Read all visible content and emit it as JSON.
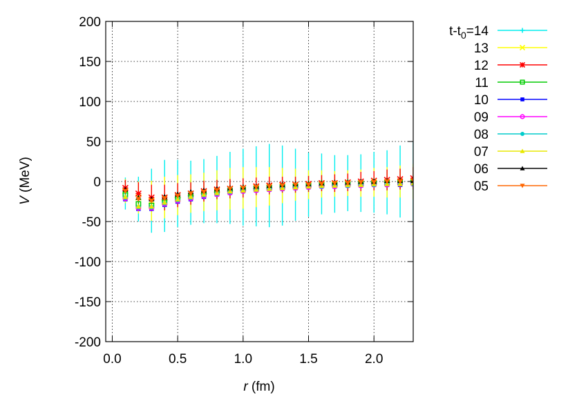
{
  "chart_data": {
    "type": "scatter",
    "title": "",
    "xlabel": {
      "symbol": "r",
      "unit": "(fm)"
    },
    "ylabel": {
      "symbol": "V",
      "unit": "(MeV)"
    },
    "xlim": [
      -0.05,
      2.3
    ],
    "ylim": [
      -200,
      200
    ],
    "x_ticks": [
      {
        "value": 0.0,
        "label": "0.0"
      },
      {
        "value": 0.5,
        "label": "0.5"
      },
      {
        "value": 1.0,
        "label": "1.0"
      },
      {
        "value": 1.5,
        "label": "1.5"
      },
      {
        "value": 2.0,
        "label": "2.0"
      }
    ],
    "y_ticks": [
      {
        "value": 200,
        "label": "200"
      },
      {
        "value": 150,
        "label": "150"
      },
      {
        "value": 100,
        "label": "100"
      },
      {
        "value": 50,
        "label": "50"
      },
      {
        "value": 0,
        "label": "0"
      },
      {
        "value": -50,
        "label": "-50"
      },
      {
        "value": -100,
        "label": "-100"
      },
      {
        "value": -150,
        "label": "-150"
      },
      {
        "value": -200,
        "label": "-200"
      }
    ],
    "grid": true,
    "legend_placement": "right, outside plot",
    "legend_title_main": "t-t",
    "legend_title_sub": "0",
    "series": [
      {
        "name": "14",
        "label": "=14",
        "color": "#00eeee",
        "marker": "plus",
        "x": [
          0.1,
          0.2,
          0.3,
          0.4,
          0.5,
          0.6,
          0.7,
          0.8,
          0.9,
          1.0,
          1.1,
          1.2,
          1.3,
          1.4,
          1.5,
          1.6,
          1.7,
          1.8,
          1.9,
          2.0,
          2.1,
          2.2,
          2.3
        ],
        "y": [
          -15,
          -22,
          -24,
          -18,
          -15,
          -14,
          -12,
          -10,
          -8,
          -7,
          -6,
          -5,
          -5,
          -4,
          -4,
          -3,
          -3,
          -2,
          -2,
          -1,
          -1,
          0,
          0
        ],
        "error": [
          20,
          28,
          40,
          45,
          42,
          40,
          40,
          42,
          45,
          48,
          50,
          52,
          50,
          45,
          40,
          38,
          36,
          35,
          36,
          38,
          40,
          45,
          50
        ]
      },
      {
        "name": "13",
        "label": "13",
        "color": "#ffff00",
        "marker": "cross",
        "x": [
          0.1,
          0.2,
          0.3,
          0.4,
          0.5,
          0.6,
          0.7,
          0.8,
          0.9,
          1.0,
          1.1,
          1.2,
          1.3,
          1.4,
          1.5,
          1.6,
          1.7,
          1.8,
          1.9,
          2.0,
          2.1,
          2.2,
          2.3
        ],
        "y": [
          -12,
          -20,
          -24,
          -20,
          -17,
          -15,
          -13,
          -11,
          -9,
          -8,
          -7,
          -6,
          -5,
          -4,
          -4,
          -3,
          -3,
          -2,
          -2,
          -1,
          -1,
          0,
          0
        ],
        "error": [
          15,
          20,
          25,
          26,
          25,
          24,
          24,
          25,
          26,
          26,
          25,
          24,
          22,
          20,
          18,
          17,
          16,
          16,
          17,
          18,
          19,
          20,
          22
        ]
      },
      {
        "name": "12",
        "label": "12",
        "color": "#ff0000",
        "marker": "star",
        "x": [
          0.1,
          0.2,
          0.3,
          0.4,
          0.5,
          0.6,
          0.7,
          0.8,
          0.9,
          1.0,
          1.1,
          1.2,
          1.3,
          1.4,
          1.5,
          1.6,
          1.7,
          1.8,
          1.9,
          2.0,
          2.1,
          2.2,
          2.3
        ],
        "y": [
          -8,
          -15,
          -20,
          -20,
          -17,
          -15,
          -12,
          -10,
          -9,
          -8,
          -6,
          -5,
          -4,
          -4,
          -3,
          -2,
          -2,
          -1,
          0,
          1,
          2,
          3,
          4
        ],
        "error": [
          10,
          14,
          16,
          16,
          15,
          14,
          13,
          12,
          12,
          12,
          11,
          11,
          10,
          10,
          10,
          10,
          11,
          11,
          12,
          12,
          13,
          13,
          14
        ]
      },
      {
        "name": "11",
        "label": "11",
        "color": "#00cc00",
        "marker": "square-open",
        "x": [
          0.1,
          0.2,
          0.3,
          0.4,
          0.5,
          0.6,
          0.7,
          0.8,
          0.9,
          1.0,
          1.1,
          1.2,
          1.3,
          1.4,
          1.5,
          1.6,
          1.7,
          1.8,
          1.9,
          2.0,
          2.1,
          2.2,
          2.3
        ],
        "y": [
          -16,
          -28,
          -30,
          -26,
          -22,
          -19,
          -16,
          -14,
          -12,
          -10,
          -9,
          -8,
          -7,
          -6,
          -5,
          -4,
          -4,
          -3,
          -3,
          -2,
          -2,
          -1,
          -1
        ],
        "error": [
          5,
          6,
          7,
          7,
          6,
          6,
          6,
          6,
          6,
          6,
          6,
          6,
          6,
          6,
          6,
          6,
          6,
          6,
          6,
          6,
          6,
          6,
          6
        ]
      },
      {
        "name": "10",
        "label": "10",
        "color": "#0000ff",
        "marker": "square-filled",
        "x": [
          0.1,
          0.2,
          0.3,
          0.4,
          0.5,
          0.6,
          0.7,
          0.8,
          0.9,
          1.0,
          1.1,
          1.2,
          1.3,
          1.4,
          1.5,
          1.6,
          1.7,
          1.8,
          1.9,
          2.0,
          2.1,
          2.2,
          2.3
        ],
        "y": [
          -22,
          -34,
          -34,
          -29,
          -25,
          -22,
          -19,
          -16,
          -14,
          -12,
          -11,
          -10,
          -9,
          -8,
          -7,
          -6,
          -6,
          -5,
          -5,
          -4,
          -4,
          -4,
          -3
        ],
        "error": [
          2,
          2,
          3,
          3,
          3,
          3,
          3,
          3,
          3,
          3,
          3,
          3,
          3,
          3,
          3,
          3,
          3,
          3,
          3,
          3,
          3,
          3,
          3
        ]
      },
      {
        "name": "09",
        "label": "09",
        "color": "#ff00ff",
        "marker": "circle-open",
        "x": [
          0.1,
          0.2,
          0.3,
          0.4,
          0.5,
          0.6,
          0.7,
          0.8,
          0.9,
          1.0,
          1.1,
          1.2,
          1.3,
          1.4,
          1.5,
          1.6,
          1.7,
          1.8,
          1.9,
          2.0,
          2.1,
          2.2,
          2.3
        ],
        "y": [
          -21,
          -33,
          -33,
          -28,
          -24,
          -21,
          -18,
          -16,
          -14,
          -12,
          -11,
          -10,
          -9,
          -8,
          -7,
          -6,
          -6,
          -5,
          -5,
          -4,
          -4,
          -3,
          -3
        ],
        "error": [
          2,
          2,
          2,
          2,
          2,
          2,
          2,
          2,
          2,
          2,
          2,
          2,
          2,
          2,
          2,
          2,
          2,
          2,
          2,
          2,
          2,
          2,
          2
        ]
      },
      {
        "name": "08",
        "label": "08",
        "color": "#00cccc",
        "marker": "circle-filled",
        "x": [
          0.1,
          0.2,
          0.3,
          0.4,
          0.5,
          0.6,
          0.7,
          0.8,
          0.9,
          1.0,
          1.1,
          1.2,
          1.3,
          1.4,
          1.5,
          1.6,
          1.7,
          1.8,
          1.9,
          2.0,
          2.1,
          2.2,
          2.3
        ],
        "y": [
          -20,
          -32,
          -32,
          -27,
          -23,
          -20,
          -17,
          -15,
          -13,
          -11,
          -10,
          -9,
          -8,
          -7,
          -6,
          -6,
          -5,
          -5,
          -4,
          -4,
          -3,
          -3,
          -3
        ],
        "error": [
          1,
          1,
          1,
          1,
          1,
          1,
          1,
          1,
          1,
          1,
          1,
          1,
          1,
          1,
          1,
          1,
          1,
          1,
          1,
          1,
          1,
          1,
          1
        ]
      },
      {
        "name": "07",
        "label": "07",
        "color": "#e8e800",
        "marker": "triangle-up",
        "x": [
          0.1,
          0.2,
          0.3,
          0.4,
          0.5,
          0.6,
          0.7,
          0.8,
          0.9,
          1.0,
          1.1,
          1.2,
          1.3,
          1.4,
          1.5,
          1.6,
          1.7,
          1.8,
          1.9,
          2.0,
          2.1,
          2.2,
          2.3
        ],
        "y": [
          -19,
          -31,
          -31,
          -26,
          -22,
          -19,
          -16,
          -14,
          -12,
          -11,
          -10,
          -9,
          -8,
          -7,
          -6,
          -5,
          -5,
          -4,
          -4,
          -3,
          -3,
          -3,
          -2
        ],
        "error": [
          1,
          1,
          1,
          1,
          1,
          1,
          1,
          1,
          1,
          1,
          1,
          1,
          1,
          1,
          1,
          1,
          1,
          1,
          1,
          1,
          1,
          1,
          1
        ]
      },
      {
        "name": "06",
        "label": "06",
        "color": "#000000",
        "marker": "triangle-up",
        "x": [
          0.1,
          0.2,
          0.3,
          0.4,
          0.5,
          0.6,
          0.7,
          0.8,
          0.9,
          1.0,
          1.1,
          1.2,
          1.3,
          1.4,
          1.5,
          1.6,
          1.7,
          1.8,
          1.9,
          2.0,
          2.1,
          2.2,
          2.3
        ],
        "y": [
          -10,
          -20,
          -22,
          -19,
          -16,
          -13,
          -11,
          -9,
          -8,
          -7,
          -6,
          -5,
          -4,
          -3,
          -3,
          -2,
          -1,
          -1,
          0,
          0,
          1,
          1,
          1
        ],
        "error": [
          1,
          1,
          1,
          1,
          1,
          1,
          1,
          1,
          1,
          1,
          1,
          1,
          1,
          1,
          1,
          1,
          1,
          1,
          1,
          1,
          1,
          1,
          1
        ]
      },
      {
        "name": "05",
        "label": "05",
        "color": "#ff6600",
        "marker": "triangle-down",
        "x": [
          0.1,
          0.2,
          0.3,
          0.4,
          0.5,
          0.6,
          0.7,
          0.8,
          0.9,
          1.0,
          1.1,
          1.2,
          1.3,
          1.4,
          1.5,
          1.6,
          1.7,
          1.8,
          1.9,
          2.0,
          2.1,
          2.2,
          2.3
        ],
        "y": [
          -12,
          -22,
          -24,
          -21,
          -18,
          -15,
          -13,
          -11,
          -9,
          -8,
          -7,
          -6,
          -5,
          -4,
          -4,
          -3,
          -2,
          -2,
          -1,
          -1,
          0,
          0,
          1
        ],
        "error": [
          1,
          1,
          1,
          1,
          1,
          1,
          1,
          1,
          1,
          1,
          1,
          1,
          1,
          1,
          1,
          1,
          1,
          1,
          1,
          1,
          1,
          1,
          1
        ]
      }
    ]
  }
}
